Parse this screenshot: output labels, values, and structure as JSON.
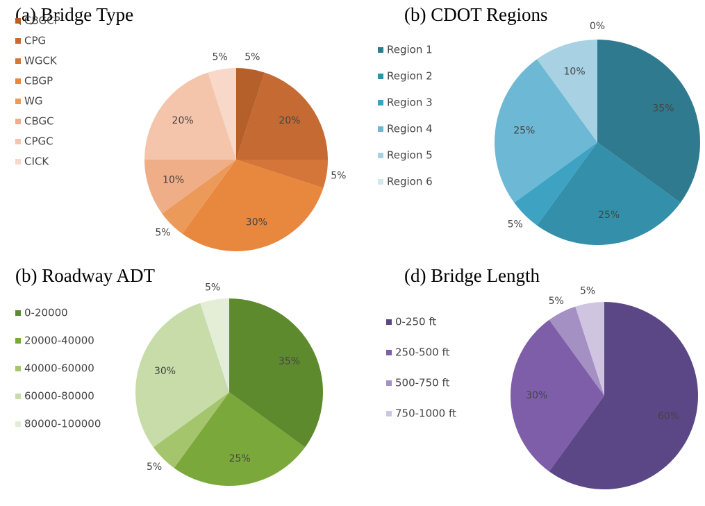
{
  "chart_data": [
    {
      "type": "pie",
      "title": "(a) Bridge Type",
      "categories": [
        "CBGCP",
        "CPG",
        "WGCK",
        "CBGP",
        "WG",
        "CBGC",
        "CPGC",
        "CICK"
      ],
      "values": [
        5,
        20,
        5,
        30,
        5,
        10,
        20,
        5
      ],
      "value_labels": [
        "5%",
        "20%",
        "5%",
        "30%",
        "5%",
        "10%",
        "20%",
        "5%"
      ],
      "colors": [
        "#b5602a",
        "#c46a32",
        "#d4763a",
        "#e8883f",
        "#ec9a5a",
        "#f0ae88",
        "#f4c4ab",
        "#f8d8c8"
      ]
    },
    {
      "type": "pie",
      "title": "(b) CDOT Regions",
      "categories": [
        "Region 1",
        "Region 2",
        "Region 3",
        "Region 4",
        "Region 5",
        "Region 6"
      ],
      "values": [
        35,
        25,
        5,
        25,
        10,
        0
      ],
      "value_labels": [
        "35%",
        "25%",
        "5%",
        "25%",
        "10%",
        "0%"
      ],
      "colors": [
        "#2f7a8e",
        "#3490aa",
        "#3ea3c2",
        "#6db8d4",
        "#a8d2e3",
        "#d3e9f1"
      ]
    },
    {
      "type": "pie",
      "title": "(b) Roadway ADT",
      "categories": [
        "0-20000",
        "20000-40000",
        "40000-60000",
        "60000-80000",
        "80000-100000"
      ],
      "values": [
        35,
        25,
        5,
        30,
        5
      ],
      "value_labels": [
        "35%",
        "25%",
        "5%",
        "30%",
        "5%"
      ],
      "colors": [
        "#5e8a2e",
        "#7ba83b",
        "#a4c56b",
        "#c8dcaa",
        "#e4eed7"
      ]
    },
    {
      "type": "pie",
      "title": "(d) Bridge Length",
      "categories": [
        "0-250 ft",
        "250-500 ft",
        "500-750 ft",
        "750-1000 ft"
      ],
      "values": [
        60,
        30,
        5,
        5
      ],
      "value_labels": [
        "60%",
        "30%",
        "5%",
        "5%"
      ],
      "colors": [
        "#5b4686",
        "#7e5da9",
        "#a490c3",
        "#d0c5e1"
      ]
    }
  ]
}
